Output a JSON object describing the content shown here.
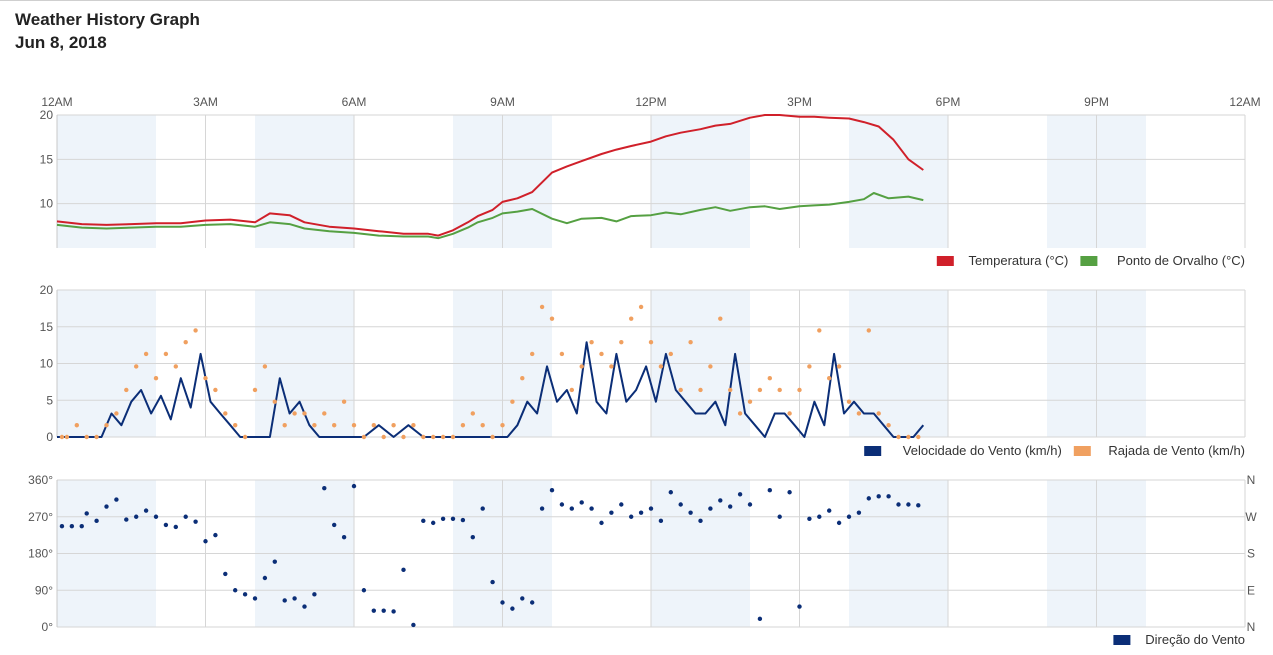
{
  "header": {
    "title": "Weather History Graph",
    "date": "Jun 8, 2018"
  },
  "colors": {
    "temperature": "#d0202a",
    "dew_point": "#55a042",
    "wind_speed": "#0b2e77",
    "wind_gust": "#f0a060",
    "wind_direction": "#0b2e77",
    "shade_band": "#eef4fa",
    "grid": "#d6d6d6"
  },
  "chart_data": [
    {
      "type": "line",
      "x_ticks": [
        "12AM",
        "3AM",
        "6AM",
        "9AM",
        "12PM",
        "3PM",
        "6PM",
        "9PM",
        "12AM"
      ],
      "xlim": [
        0,
        24
      ],
      "ylim": [
        5,
        20
      ],
      "y_ticks": [
        10,
        15,
        20
      ],
      "grid": true,
      "legend_position": "bottom-right",
      "series": [
        {
          "name": "Temperatura (°C)",
          "color": "#d0202a",
          "x": [
            0.0,
            0.5,
            1.0,
            1.5,
            2.0,
            2.5,
            3.0,
            3.5,
            4.0,
            4.3,
            4.7,
            5.0,
            5.5,
            6.0,
            6.5,
            7.0,
            7.5,
            7.7,
            8.0,
            8.3,
            8.5,
            8.8,
            9.0,
            9.3,
            9.6,
            10.0,
            10.3,
            10.6,
            11.0,
            11.3,
            11.6,
            12.0,
            12.3,
            12.6,
            13.0,
            13.3,
            13.6,
            14.0,
            14.3,
            14.6,
            15.0,
            15.3,
            15.6,
            16.0,
            16.3,
            16.6,
            16.9,
            17.2,
            17.5
          ],
          "values": [
            8.0,
            7.7,
            7.6,
            7.7,
            7.8,
            7.8,
            8.1,
            8.2,
            7.9,
            8.9,
            8.7,
            7.9,
            7.4,
            7.2,
            6.9,
            6.6,
            6.6,
            6.4,
            7.0,
            7.9,
            8.6,
            9.3,
            10.2,
            10.6,
            11.3,
            13.5,
            14.2,
            14.8,
            15.6,
            16.1,
            16.5,
            17.0,
            17.6,
            18.0,
            18.4,
            18.8,
            19.0,
            19.7,
            20.0,
            20.0,
            19.8,
            19.8,
            19.7,
            19.6,
            19.2,
            18.7,
            17.2,
            15.0,
            13.8
          ]
        },
        {
          "name": "Ponto de Orvalho (°C)",
          "color": "#55a042",
          "x": [
            0.0,
            0.5,
            1.0,
            1.5,
            2.0,
            2.5,
            3.0,
            3.5,
            4.0,
            4.3,
            4.7,
            5.0,
            5.5,
            6.0,
            6.5,
            7.0,
            7.5,
            7.7,
            8.0,
            8.3,
            8.5,
            8.8,
            9.0,
            9.3,
            9.6,
            10.0,
            10.3,
            10.6,
            11.0,
            11.3,
            11.6,
            12.0,
            12.3,
            12.6,
            13.0,
            13.3,
            13.6,
            14.0,
            14.3,
            14.6,
            15.0,
            15.3,
            15.6,
            16.0,
            16.3,
            16.5,
            16.8,
            17.2,
            17.5
          ],
          "values": [
            7.6,
            7.3,
            7.2,
            7.3,
            7.4,
            7.4,
            7.6,
            7.7,
            7.4,
            7.9,
            7.7,
            7.2,
            6.9,
            6.7,
            6.4,
            6.3,
            6.3,
            6.1,
            6.6,
            7.3,
            7.9,
            8.4,
            8.9,
            9.1,
            9.4,
            8.3,
            7.8,
            8.3,
            8.4,
            8.0,
            8.6,
            8.7,
            9.0,
            8.8,
            9.3,
            9.6,
            9.2,
            9.6,
            9.7,
            9.4,
            9.7,
            9.8,
            9.9,
            10.2,
            10.5,
            11.2,
            10.6,
            10.8,
            10.4
          ]
        }
      ]
    },
    {
      "type": "line",
      "x_ticks": [
        "12AM",
        "3AM",
        "6AM",
        "9AM",
        "12PM",
        "3PM",
        "6PM",
        "9PM",
        "12AM"
      ],
      "xlim": [
        0,
        24
      ],
      "ylim": [
        0,
        20
      ],
      "y_ticks": [
        0,
        5,
        10,
        15,
        20
      ],
      "grid": true,
      "legend_position": "bottom-right",
      "series": [
        {
          "name": "Velocidade do Vento (km/h)",
          "color": "#0b2e77",
          "x": [
            0.0,
            0.3,
            0.6,
            0.9,
            1.1,
            1.3,
            1.5,
            1.7,
            1.9,
            2.1,
            2.3,
            2.5,
            2.7,
            2.9,
            3.1,
            3.3,
            3.5,
            3.7,
            3.9,
            4.1,
            4.3,
            4.5,
            4.7,
            4.9,
            5.1,
            5.3,
            5.5,
            5.7,
            5.9,
            6.2,
            6.5,
            6.8,
            7.1,
            7.4,
            7.7,
            8.0,
            8.3,
            8.6,
            8.9,
            9.1,
            9.3,
            9.5,
            9.7,
            9.9,
            10.1,
            10.3,
            10.5,
            10.7,
            10.9,
            11.1,
            11.3,
            11.5,
            11.7,
            11.9,
            12.1,
            12.3,
            12.5,
            12.7,
            12.9,
            13.1,
            13.3,
            13.5,
            13.7,
            13.9,
            14.1,
            14.3,
            14.5,
            14.7,
            14.9,
            15.1,
            15.3,
            15.5,
            15.7,
            15.9,
            16.1,
            16.3,
            16.5,
            16.7,
            16.9,
            17.1,
            17.3,
            17.5
          ],
          "values": [
            0,
            0,
            0,
            0,
            3.2,
            1.6,
            4.8,
            6.4,
            3.2,
            5.6,
            2.4,
            8.0,
            4.0,
            11.3,
            4.8,
            3.2,
            1.6,
            0,
            0,
            0,
            0,
            8.0,
            3.2,
            4.8,
            1.6,
            0,
            0,
            0,
            0,
            0,
            1.6,
            0,
            1.6,
            0,
            0,
            0,
            0,
            0,
            0,
            0,
            1.6,
            4.8,
            3.2,
            9.6,
            4.8,
            6.4,
            3.2,
            12.9,
            4.8,
            3.2,
            11.3,
            4.8,
            6.4,
            9.6,
            4.8,
            11.3,
            6.4,
            4.8,
            3.2,
            3.2,
            4.8,
            1.6,
            11.3,
            3.2,
            1.6,
            0,
            3.2,
            3.2,
            1.6,
            0,
            4.8,
            1.6,
            11.3,
            3.2,
            4.8,
            3.2,
            3.2,
            1.6,
            0,
            0,
            0,
            1.6
          ]
        },
        {
          "name": "Rajada de Vento (km/h)",
          "color": "#f0a060",
          "x": [
            0.1,
            0.2,
            0.4,
            0.6,
            0.8,
            1.0,
            1.2,
            1.4,
            1.6,
            1.8,
            2.0,
            2.2,
            2.4,
            2.6,
            2.8,
            3.0,
            3.2,
            3.4,
            3.6,
            3.8,
            4.0,
            4.2,
            4.4,
            4.6,
            4.8,
            5.0,
            5.2,
            5.4,
            5.6,
            5.8,
            6.0,
            6.2,
            6.4,
            6.6,
            6.8,
            7.0,
            7.2,
            7.4,
            7.6,
            7.8,
            8.0,
            8.2,
            8.4,
            8.6,
            8.8,
            9.0,
            9.2,
            9.4,
            9.6,
            9.8,
            10.0,
            10.2,
            10.4,
            10.6,
            10.8,
            11.0,
            11.2,
            11.4,
            11.6,
            11.8,
            12.0,
            12.2,
            12.4,
            12.6,
            12.8,
            13.0,
            13.2,
            13.4,
            13.6,
            13.8,
            14.0,
            14.2,
            14.4,
            14.6,
            14.8,
            15.0,
            15.2,
            15.4,
            15.6,
            15.8,
            16.0,
            16.2,
            16.4,
            16.6,
            16.8,
            17.0,
            17.2,
            17.4
          ],
          "values": [
            0,
            0,
            1.6,
            0,
            0,
            1.6,
            3.2,
            6.4,
            9.6,
            11.3,
            8.0,
            11.3,
            9.6,
            12.9,
            14.5,
            8.0,
            6.4,
            3.2,
            1.6,
            0,
            6.4,
            9.6,
            4.8,
            1.6,
            3.2,
            3.2,
            1.6,
            3.2,
            1.6,
            4.8,
            1.6,
            0,
            1.6,
            0,
            1.6,
            0,
            1.6,
            0,
            0,
            0,
            0,
            1.6,
            3.2,
            1.6,
            0,
            1.6,
            4.8,
            8.0,
            11.3,
            17.7,
            16.1,
            11.3,
            6.4,
            9.6,
            12.9,
            11.3,
            9.6,
            12.9,
            16.1,
            17.7,
            12.9,
            9.6,
            11.3,
            6.4,
            12.9,
            6.4,
            9.6,
            16.1,
            6.4,
            3.2,
            4.8,
            6.4,
            8.0,
            6.4,
            3.2,
            6.4,
            9.6,
            14.5,
            8.0,
            9.6,
            4.8,
            3.2,
            14.5,
            3.2,
            1.6,
            0,
            0,
            0
          ]
        }
      ]
    },
    {
      "type": "scatter",
      "x_ticks": [
        "12AM",
        "3AM",
        "6AM",
        "9AM",
        "12PM",
        "3PM",
        "6PM",
        "9PM",
        "12AM"
      ],
      "xlim": [
        0,
        24
      ],
      "ylim": [
        0,
        360
      ],
      "y_ticks": [
        "0°",
        "90°",
        "180°",
        "270°",
        "360°"
      ],
      "y_right_ticks": [
        "N",
        "E",
        "S",
        "W",
        "N"
      ],
      "grid": true,
      "legend_position": "bottom-right",
      "series": [
        {
          "name": "Direção do Vento",
          "color": "#0b2e77",
          "x": [
            0.1,
            0.3,
            0.5,
            0.6,
            0.8,
            1.0,
            1.2,
            1.4,
            1.6,
            1.8,
            2.0,
            2.2,
            2.4,
            2.6,
            2.8,
            3.0,
            3.2,
            3.4,
            3.6,
            3.8,
            4.0,
            4.2,
            4.4,
            4.6,
            4.8,
            5.0,
            5.2,
            5.4,
            5.6,
            5.8,
            6.0,
            6.2,
            6.4,
            6.6,
            6.8,
            7.0,
            7.2,
            7.4,
            7.6,
            7.8,
            8.0,
            8.2,
            8.4,
            8.6,
            8.8,
            9.0,
            9.2,
            9.4,
            9.6,
            9.8,
            10.0,
            10.2,
            10.4,
            10.6,
            10.8,
            11.0,
            11.2,
            11.4,
            11.6,
            11.8,
            12.0,
            12.2,
            12.4,
            12.6,
            12.8,
            13.0,
            13.2,
            13.4,
            13.6,
            13.8,
            14.0,
            14.2,
            14.4,
            14.6,
            14.8,
            15.0,
            15.2,
            15.4,
            15.6,
            15.8,
            16.0,
            16.2,
            16.4,
            16.6,
            16.8,
            17.0,
            17.2,
            17.4
          ],
          "values": [
            247,
            247,
            247,
            278,
            260,
            295,
            312,
            263,
            270,
            285,
            270,
            250,
            245,
            270,
            258,
            210,
            225,
            130,
            90,
            80,
            70,
            120,
            160,
            65,
            70,
            50,
            80,
            340,
            250,
            220,
            345,
            90,
            40,
            40,
            38,
            140,
            5,
            260,
            255,
            265,
            265,
            262,
            220,
            290,
            110,
            60,
            45,
            70,
            60,
            290,
            335,
            300,
            290,
            305,
            290,
            255,
            280,
            300,
            270,
            280,
            290,
            260,
            330,
            300,
            280,
            260,
            290,
            310,
            295,
            325,
            300,
            20,
            335,
            270,
            330,
            50,
            265,
            270,
            285,
            255,
            270,
            280,
            315,
            320,
            320,
            300,
            300,
            298
          ]
        }
      ]
    }
  ]
}
